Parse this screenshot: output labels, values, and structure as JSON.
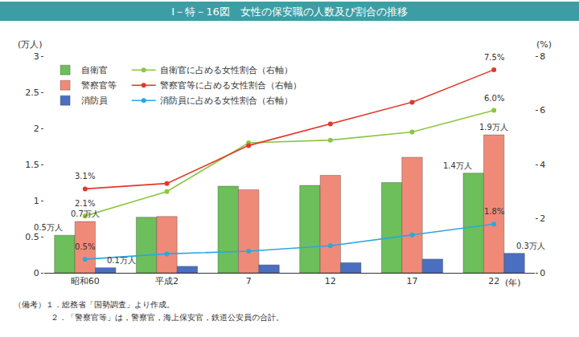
{
  "chart_data": {
    "type": "bar",
    "title": "Ⅰ－特－16図　女性の保安職の人数及び割合の推移",
    "y_label": "(万人)",
    "y2_label": "(%)",
    "x_label": "(年)",
    "categories": [
      "昭和60",
      "平成2",
      "7",
      "12",
      "17",
      "22"
    ],
    "ylim": [
      0,
      3
    ],
    "yticks": [
      0,
      0.5,
      1,
      1.5,
      2,
      2.5,
      3
    ],
    "y2lim": [
      0,
      8
    ],
    "y2ticks": [
      0,
      2,
      4,
      6,
      8
    ],
    "grid": false,
    "legend": "upper left",
    "data_labels": true,
    "series": [
      {
        "name": "自衛官",
        "type": "bar",
        "axis": "y",
        "color": "#6cbf5a",
        "values": [
          0.52,
          0.77,
          1.2,
          1.21,
          1.25,
          1.38
        ],
        "value_labels": [
          "0.5万人",
          null,
          null,
          null,
          null,
          "1.4万人"
        ]
      },
      {
        "name": "警察官等",
        "type": "bar",
        "axis": "y",
        "color": "#f08a78",
        "values": [
          0.71,
          0.78,
          1.15,
          1.35,
          1.6,
          1.91
        ],
        "value_labels": [
          "0.7万人",
          null,
          null,
          null,
          null,
          "1.9万人"
        ]
      },
      {
        "name": "消防員",
        "type": "bar",
        "axis": "y",
        "color": "#4a6fc0",
        "values": [
          0.07,
          0.09,
          0.11,
          0.14,
          0.19,
          0.27
        ],
        "value_labels": [
          "0.1万人",
          null,
          null,
          null,
          null,
          "0.3万人"
        ]
      },
      {
        "name": "自衛官に占める女性割合（右軸）",
        "type": "line",
        "axis": "y2",
        "color": "#8cc63f",
        "marker": "circle",
        "values": [
          2.1,
          3.0,
          4.8,
          4.9,
          5.2,
          6.0
        ],
        "value_labels": [
          "2.1%",
          null,
          null,
          null,
          null,
          "6.0%"
        ]
      },
      {
        "name": "警察官等に占める女性割合（右軸）",
        "type": "line",
        "axis": "y2",
        "color": "#e2382b",
        "marker": "circle",
        "values": [
          3.1,
          3.3,
          4.7,
          5.5,
          6.3,
          7.5
        ],
        "value_labels": [
          "3.1%",
          null,
          null,
          null,
          null,
          "7.5%"
        ]
      },
      {
        "name": "消防員に占める女性割合（右軸）",
        "type": "line",
        "axis": "y2",
        "color": "#29a8e0",
        "marker": "circle",
        "values": [
          0.5,
          0.7,
          0.8,
          1.0,
          1.4,
          1.8
        ],
        "value_labels": [
          "0.5%",
          null,
          null,
          null,
          null,
          "1.8%"
        ]
      }
    ],
    "notes": [
      "（備考）１．総務省「国勢調査」より作成。",
      "２．「警察官等」は，警察官，海上保安官，鉄道公安員の合計。"
    ]
  }
}
